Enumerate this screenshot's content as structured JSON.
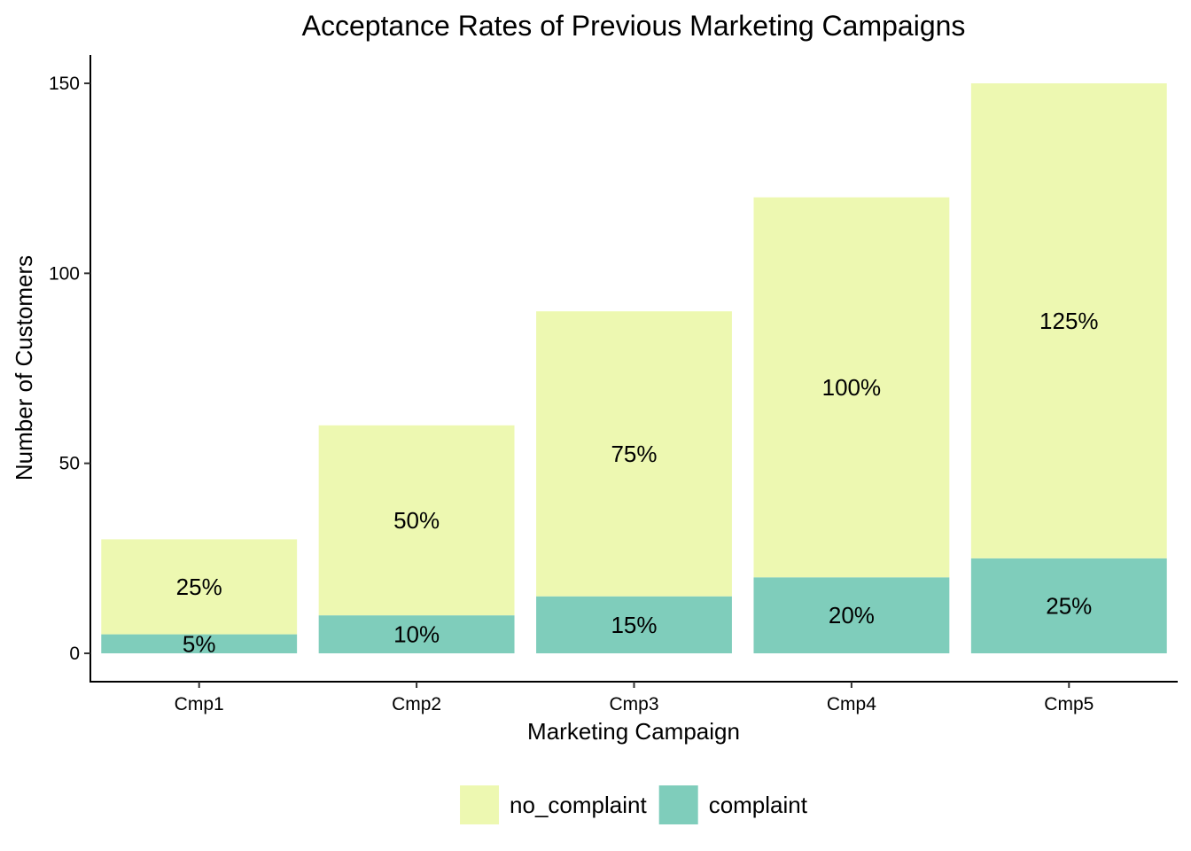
{
  "chart_data": {
    "type": "bar",
    "stacked": true,
    "title": "Acceptance Rates of Previous Marketing Campaigns",
    "xlabel": "Marketing Campaign",
    "ylabel": "Number of Customers",
    "categories": [
      "Cmp1",
      "Cmp2",
      "Cmp3",
      "Cmp4",
      "Cmp5"
    ],
    "ylim": [
      -7,
      157
    ],
    "yticks": [
      0,
      50,
      100,
      150
    ],
    "grid": false,
    "legend_position": "bottom",
    "series": [
      {
        "name": "complaint",
        "color": "#7fcdbb",
        "values": [
          5,
          10,
          15,
          20,
          25
        ],
        "labels": [
          "5%",
          "10%",
          "15%",
          "20%",
          "25%"
        ]
      },
      {
        "name": "no_complaint",
        "color": "#edf8b1",
        "values": [
          25,
          50,
          75,
          100,
          125
        ],
        "labels": [
          "25%",
          "50%",
          "75%",
          "100%",
          "125%"
        ]
      }
    ],
    "legend_order": [
      "no_complaint",
      "complaint"
    ]
  }
}
